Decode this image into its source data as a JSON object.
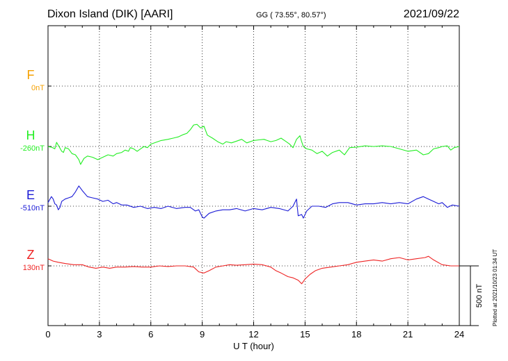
{
  "header": {
    "station": "Dixon Island (DIK)  [AARI]",
    "coords": "GG ( 73.55°,  80.57°)",
    "date": "2021/09/22"
  },
  "footer": {
    "plotted": "Plotted at 2021/10/23 01:34 UT"
  },
  "scale_bar_label": "500 nT",
  "chart_data": {
    "type": "line",
    "xlabel": "U T (hour)",
    "xlim": [
      0,
      24
    ],
    "xticks": [
      0,
      3,
      6,
      9,
      12,
      15,
      18,
      21,
      24
    ],
    "grid": true,
    "nT_per_scale_bar": 500,
    "series": [
      {
        "name": "F",
        "baseline_label": "0nT",
        "color": "#f5a000",
        "points": []
      },
      {
        "name": "H",
        "baseline_label": "-260nT",
        "color": "#22ee22",
        "points": [
          [
            0,
            -2
          ],
          [
            0.2,
            -5
          ],
          [
            0.4,
            -20
          ],
          [
            0.5,
            35
          ],
          [
            0.6,
            10
          ],
          [
            0.8,
            -40
          ],
          [
            0.9,
            -50
          ],
          [
            1.0,
            -10
          ],
          [
            1.2,
            -20
          ],
          [
            1.4,
            -60
          ],
          [
            1.6,
            -70
          ],
          [
            1.8,
            -110
          ],
          [
            1.9,
            -150
          ],
          [
            2.1,
            -100
          ],
          [
            2.3,
            -80
          ],
          [
            2.6,
            -90
          ],
          [
            2.9,
            -110
          ],
          [
            3.2,
            -90
          ],
          [
            3.5,
            -70
          ],
          [
            3.8,
            -80
          ],
          [
            4.0,
            -60
          ],
          [
            4.3,
            -50
          ],
          [
            4.5,
            -30
          ],
          [
            4.7,
            -40
          ],
          [
            4.8,
            -10
          ],
          [
            5.0,
            -20
          ],
          [
            5.2,
            -40
          ],
          [
            5.4,
            -20
          ],
          [
            5.6,
            0
          ],
          [
            5.8,
            -10
          ],
          [
            6.0,
            20
          ],
          [
            6.3,
            35
          ],
          [
            6.6,
            50
          ],
          [
            7.0,
            60
          ],
          [
            7.3,
            70
          ],
          [
            7.6,
            80
          ],
          [
            7.9,
            100
          ],
          [
            8.1,
            110
          ],
          [
            8.3,
            140
          ],
          [
            8.5,
            180
          ],
          [
            8.7,
            185
          ],
          [
            8.9,
            155
          ],
          [
            9.1,
            170
          ],
          [
            9.3,
            95
          ],
          [
            9.6,
            70
          ],
          [
            9.9,
            40
          ],
          [
            10.2,
            20
          ],
          [
            10.4,
            40
          ],
          [
            10.7,
            30
          ],
          [
            11.0,
            45
          ],
          [
            11.3,
            60
          ],
          [
            11.6,
            30
          ],
          [
            12.0,
            50
          ],
          [
            12.3,
            55
          ],
          [
            12.6,
            60
          ],
          [
            13.0,
            40
          ],
          [
            13.3,
            50
          ],
          [
            13.6,
            70
          ],
          [
            13.9,
            40
          ],
          [
            14.1,
            20
          ],
          [
            14.3,
            -10
          ],
          [
            14.5,
            60
          ],
          [
            14.7,
            90
          ],
          [
            14.8,
            40
          ],
          [
            14.9,
            0
          ],
          [
            15.1,
            -20
          ],
          [
            15.4,
            -30
          ],
          [
            15.7,
            -60
          ],
          [
            16.0,
            -40
          ],
          [
            16.3,
            -80
          ],
          [
            16.6,
            -50
          ],
          [
            17.0,
            -30
          ],
          [
            17.3,
            -70
          ],
          [
            17.6,
            -10
          ],
          [
            18.0,
            -5
          ],
          [
            18.5,
            5
          ],
          [
            19.0,
            0
          ],
          [
            19.5,
            5
          ],
          [
            20.0,
            0
          ],
          [
            20.5,
            -20
          ],
          [
            21.0,
            -40
          ],
          [
            21.5,
            -30
          ],
          [
            21.9,
            -70
          ],
          [
            22.2,
            -60
          ],
          [
            22.5,
            -20
          ],
          [
            22.8,
            -10
          ],
          [
            23.0,
            0
          ],
          [
            23.3,
            5
          ],
          [
            23.5,
            -30
          ],
          [
            23.7,
            -10
          ],
          [
            24.0,
            0
          ]
        ]
      },
      {
        "name": "E",
        "baseline_label": "-510nT",
        "color": "#1a1ad6",
        "points": [
          [
            0,
            30
          ],
          [
            0.2,
            80
          ],
          [
            0.3,
            60
          ],
          [
            0.4,
            20
          ],
          [
            0.5,
            10
          ],
          [
            0.6,
            -30
          ],
          [
            0.7,
            -10
          ],
          [
            0.8,
            40
          ],
          [
            1.0,
            60
          ],
          [
            1.2,
            70
          ],
          [
            1.4,
            80
          ],
          [
            1.6,
            120
          ],
          [
            1.8,
            170
          ],
          [
            2.0,
            130
          ],
          [
            2.3,
            80
          ],
          [
            2.6,
            70
          ],
          [
            2.9,
            60
          ],
          [
            3.2,
            40
          ],
          [
            3.5,
            50
          ],
          [
            3.8,
            20
          ],
          [
            4.0,
            30
          ],
          [
            4.3,
            10
          ],
          [
            4.6,
            10
          ],
          [
            5.0,
            -10
          ],
          [
            5.4,
            0
          ],
          [
            5.8,
            -20
          ],
          [
            6.2,
            -10
          ],
          [
            6.6,
            -20
          ],
          [
            7.0,
            0
          ],
          [
            7.5,
            -20
          ],
          [
            8.0,
            -10
          ],
          [
            8.3,
            -10
          ],
          [
            8.6,
            -40
          ],
          [
            8.8,
            -30
          ],
          [
            9.0,
            -90
          ],
          [
            9.1,
            -100
          ],
          [
            9.4,
            -60
          ],
          [
            9.8,
            -40
          ],
          [
            10.2,
            -30
          ],
          [
            10.6,
            -30
          ],
          [
            11.0,
            -20
          ],
          [
            11.5,
            -40
          ],
          [
            12.0,
            -20
          ],
          [
            12.5,
            -30
          ],
          [
            13.0,
            -10
          ],
          [
            13.5,
            -20
          ],
          [
            14.0,
            -40
          ],
          [
            14.3,
            0
          ],
          [
            14.5,
            60
          ],
          [
            14.6,
            -80
          ],
          [
            14.8,
            -70
          ],
          [
            14.9,
            -100
          ],
          [
            15.1,
            -40
          ],
          [
            15.4,
            0
          ],
          [
            15.8,
            0
          ],
          [
            16.2,
            -10
          ],
          [
            16.6,
            20
          ],
          [
            17.0,
            30
          ],
          [
            17.5,
            30
          ],
          [
            18.0,
            10
          ],
          [
            18.5,
            20
          ],
          [
            19.0,
            20
          ],
          [
            19.5,
            30
          ],
          [
            20.0,
            20
          ],
          [
            20.5,
            30
          ],
          [
            21.0,
            20
          ],
          [
            21.5,
            60
          ],
          [
            21.9,
            80
          ],
          [
            22.2,
            60
          ],
          [
            22.5,
            40
          ],
          [
            22.8,
            20
          ],
          [
            23.0,
            30
          ],
          [
            23.3,
            -10
          ],
          [
            23.6,
            10
          ],
          [
            24.0,
            0
          ]
        ]
      },
      {
        "name": "Z",
        "baseline_label": "130nT",
        "color": "#ee2222",
        "points": [
          [
            0,
            60
          ],
          [
            0.3,
            40
          ],
          [
            0.6,
            30
          ],
          [
            1.0,
            20
          ],
          [
            1.5,
            10
          ],
          [
            2.0,
            10
          ],
          [
            2.4,
            -10
          ],
          [
            2.8,
            -20
          ],
          [
            3.2,
            -10
          ],
          [
            3.6,
            -20
          ],
          [
            4.0,
            -10
          ],
          [
            4.5,
            -10
          ],
          [
            5.0,
            -5
          ],
          [
            5.5,
            -10
          ],
          [
            6.0,
            -10
          ],
          [
            6.5,
            0
          ],
          [
            7.0,
            -5
          ],
          [
            7.5,
            0
          ],
          [
            8.0,
            0
          ],
          [
            8.5,
            -10
          ],
          [
            8.8,
            -50
          ],
          [
            9.1,
            -60
          ],
          [
            9.4,
            -40
          ],
          [
            9.8,
            -10
          ],
          [
            10.2,
            0
          ],
          [
            10.6,
            10
          ],
          [
            11.0,
            5
          ],
          [
            11.5,
            10
          ],
          [
            12.0,
            15
          ],
          [
            12.5,
            10
          ],
          [
            13.0,
            -10
          ],
          [
            13.3,
            -40
          ],
          [
            13.6,
            -60
          ],
          [
            14.0,
            -90
          ],
          [
            14.3,
            -100
          ],
          [
            14.6,
            -120
          ],
          [
            14.8,
            -150
          ],
          [
            15.0,
            -110
          ],
          [
            15.3,
            -70
          ],
          [
            15.6,
            -40
          ],
          [
            16.0,
            -20
          ],
          [
            16.5,
            -10
          ],
          [
            17.0,
            0
          ],
          [
            17.5,
            10
          ],
          [
            18.0,
            30
          ],
          [
            18.5,
            40
          ],
          [
            19.0,
            50
          ],
          [
            19.5,
            40
          ],
          [
            20.0,
            60
          ],
          [
            20.5,
            70
          ],
          [
            21.0,
            50
          ],
          [
            21.5,
            60
          ],
          [
            22.0,
            70
          ],
          [
            22.2,
            80
          ],
          [
            22.5,
            50
          ],
          [
            23.0,
            10
          ],
          [
            23.5,
            0
          ],
          [
            24.0,
            0
          ]
        ]
      }
    ]
  }
}
